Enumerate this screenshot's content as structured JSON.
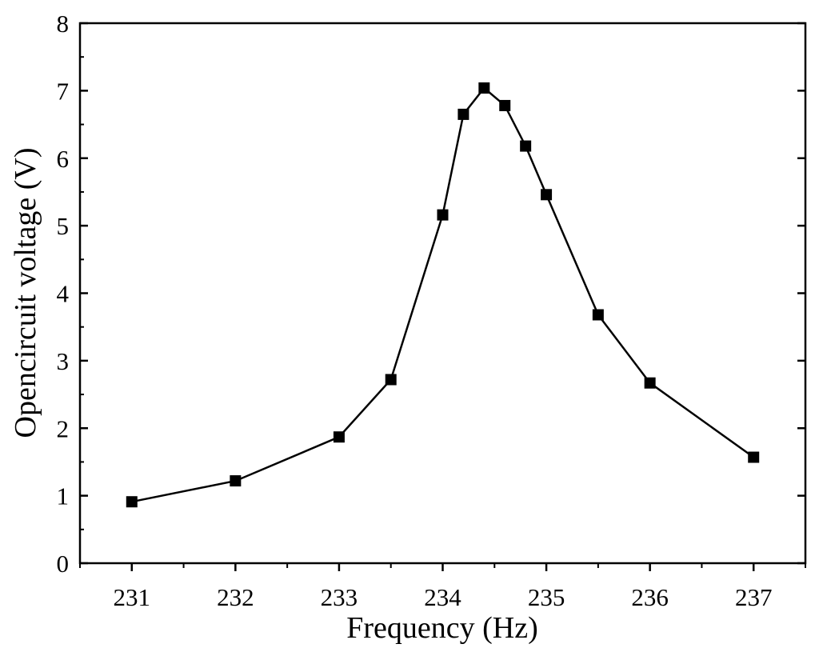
{
  "chart_data": {
    "type": "line",
    "title": "",
    "xlabel": "Frequency (Hz)",
    "ylabel": "Opencircuit voltage (V)",
    "xlim": [
      230.5,
      237.5
    ],
    "ylim": [
      0,
      8
    ],
    "x_ticks": [
      231,
      232,
      233,
      234,
      235,
      236,
      237
    ],
    "x_tick_labels": [
      "231",
      "232",
      "233",
      "234",
      "235",
      "236",
      "237"
    ],
    "y_ticks": [
      0,
      1,
      2,
      3,
      4,
      5,
      6,
      7,
      8
    ],
    "y_tick_labels": [
      "0",
      "1",
      "2",
      "3",
      "4",
      "5",
      "6",
      "7",
      "8"
    ],
    "grid": false,
    "legend": "none",
    "marker": "square",
    "color": "#000000",
    "series": [
      {
        "x": [
          231,
          232,
          233,
          233.5,
          234,
          234.2,
          234.4,
          234.6,
          234.8,
          235,
          235.5,
          236,
          237
        ],
        "y": [
          0.91,
          1.22,
          1.87,
          2.72,
          5.16,
          6.65,
          7.04,
          6.78,
          6.18,
          5.46,
          3.68,
          2.67,
          1.57
        ]
      }
    ]
  }
}
